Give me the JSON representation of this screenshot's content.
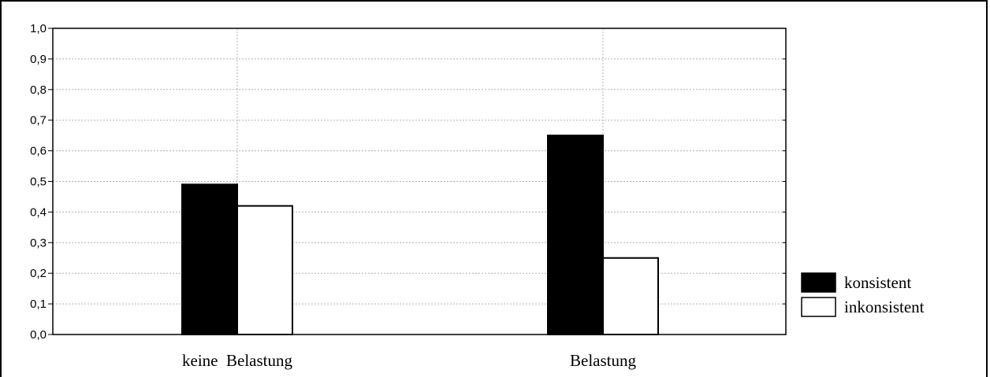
{
  "chart_data": {
    "type": "bar",
    "title": "",
    "xlabel": "",
    "ylabel": "",
    "categories": [
      "keine  Belastung",
      "Belastung"
    ],
    "series": [
      {
        "name": "konsistent",
        "values": [
          0.49,
          0.65
        ],
        "color": "#000000"
      },
      {
        "name": "inkonsistent",
        "values": [
          0.42,
          0.25
        ],
        "color": "#ffffff"
      }
    ],
    "ylim": [
      0.0,
      1.0
    ],
    "yticks": [
      "0,0",
      "0,1",
      "0,2",
      "0,3",
      "0,4",
      "0,5",
      "0,6",
      "0,7",
      "0,8",
      "0,9",
      "1,0"
    ],
    "grid": true,
    "legend_position": "right"
  }
}
